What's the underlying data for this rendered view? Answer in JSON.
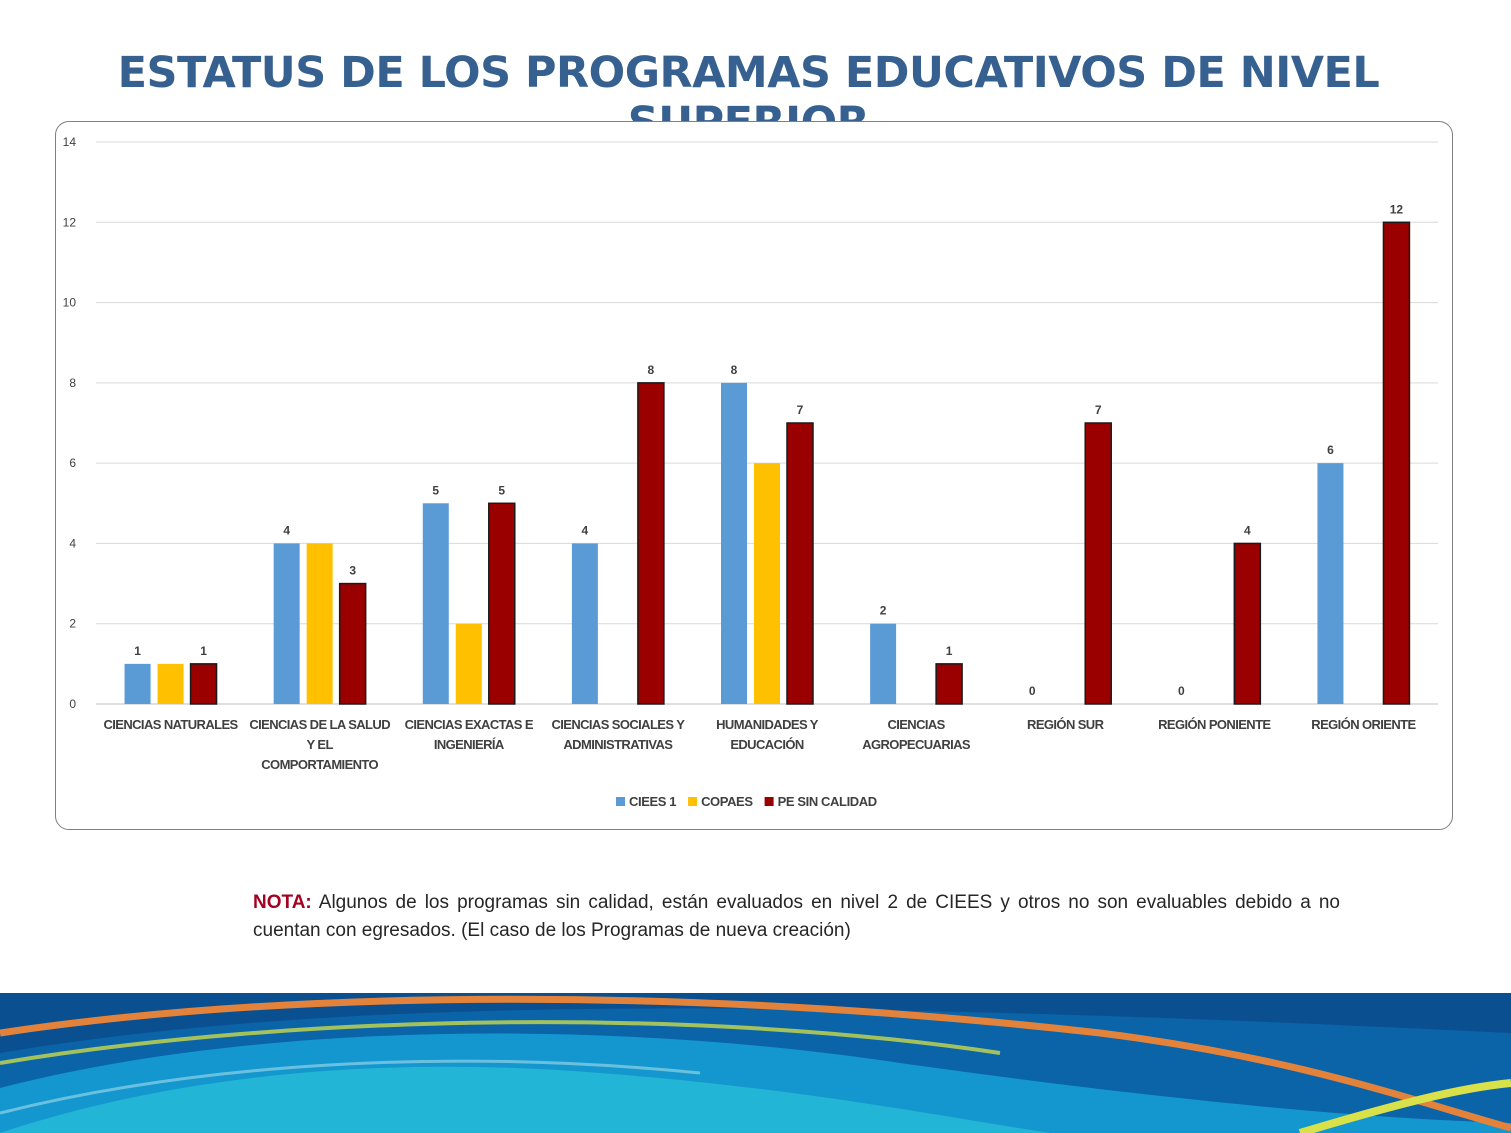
{
  "title": "ESTATUS DE LOS PROGRAMAS EDUCATIVOS DE NIVEL SUPERIOR",
  "note": {
    "label": "NOTA:",
    "text": "Algunos de los programas sin calidad, están evaluados en nivel 2 de CIEES y otros no son evaluables debido a no cuentan con egresados. (El caso de los Programas de nueva creación)"
  },
  "colors": {
    "title": "#35608f",
    "note_label": "#a50021",
    "series": [
      "#5b9bd5",
      "#ffc000",
      "#9b0000"
    ]
  },
  "chart_data": {
    "type": "bar",
    "title": "",
    "xlabel": "",
    "ylabel": "",
    "ylim": [
      0,
      14
    ],
    "yticks": [
      0,
      2,
      4,
      6,
      8,
      10,
      12,
      14
    ],
    "grid": true,
    "legend_position": "bottom",
    "categories": [
      [
        "CIENCIAS NATURALES"
      ],
      [
        "CIENCIAS DE LA SALUD",
        "Y EL",
        "COMPORTAMIENTO"
      ],
      [
        "CIENCIAS EXACTAS E",
        "INGENIERÍA"
      ],
      [
        "CIENCIAS SOCIALES Y",
        "ADMINISTRATIVAS"
      ],
      [
        "HUMANIDADES Y",
        "EDUCACIÓN"
      ],
      [
        "CIENCIAS",
        "AGROPECUARIAS"
      ],
      [
        "REGIÓN SUR"
      ],
      [
        "REGIÓN PONIENTE"
      ],
      [
        "REGIÓN ORIENTE"
      ]
    ],
    "series": [
      {
        "name": "CIEES 1",
        "color": "#5b9bd5",
        "values": [
          1,
          4,
          5,
          4,
          8,
          2,
          0,
          0,
          6
        ],
        "labels": [
          "1",
          "4",
          "5",
          "4",
          "8",
          "2",
          "0",
          "0",
          "6"
        ]
      },
      {
        "name": "COPAES",
        "color": "#ffc000",
        "values": [
          1,
          4,
          2,
          0,
          6,
          0,
          0,
          0,
          0
        ],
        "labels": [
          "",
          "",
          "",
          "",
          "",
          "",
          "",
          "",
          ""
        ]
      },
      {
        "name": "PE SIN CALIDAD",
        "color": "#9b0000",
        "values": [
          1,
          3,
          5,
          8,
          7,
          1,
          7,
          4,
          12
        ],
        "labels": [
          "1",
          "3",
          "5",
          "8",
          "7",
          "1",
          "7",
          "4",
          "12"
        ]
      }
    ]
  }
}
